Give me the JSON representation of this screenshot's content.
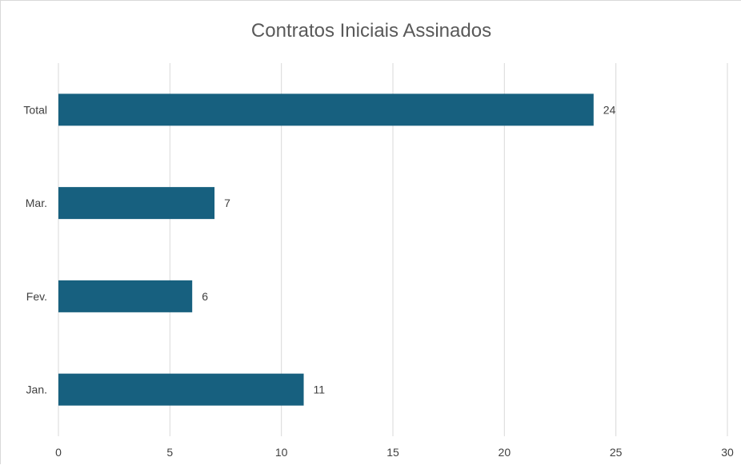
{
  "chart_data": {
    "type": "bar",
    "orientation": "horizontal",
    "title": "Contratos Iniciais Assinados",
    "categories": [
      "Jan.",
      "Fev.",
      "Mar.",
      "Total"
    ],
    "values": [
      11,
      6,
      7,
      24
    ],
    "xlim": [
      0,
      30
    ],
    "x_ticks": [
      0,
      5,
      10,
      15,
      20,
      25,
      30
    ],
    "xlabel": "",
    "ylabel": "",
    "grid": "vertical",
    "legend": "none",
    "bar_color": "#17607f",
    "grid_color": "#d9d9d9"
  }
}
